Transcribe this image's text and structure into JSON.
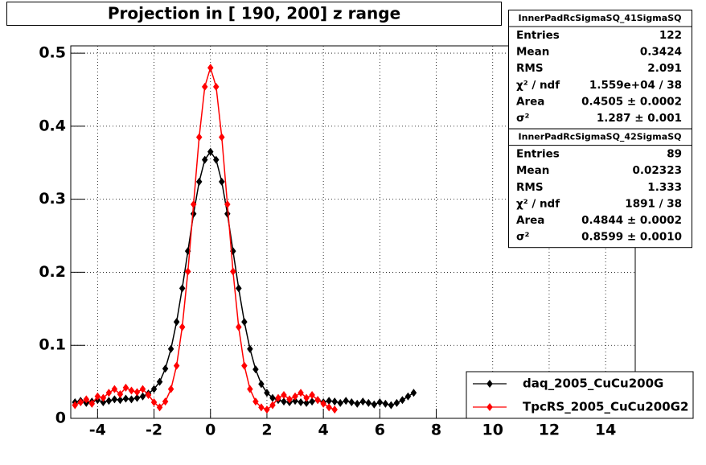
{
  "chart_data": {
    "type": "line",
    "title": "Projection in [ 190, 200] z range",
    "xlim": [
      -4.95,
      15.05
    ],
    "ylim": [
      0,
      0.51
    ],
    "xticks": [
      -4,
      -2,
      0,
      2,
      4,
      6,
      8,
      10,
      12,
      14
    ],
    "yticks": [
      0,
      0.1,
      0.2,
      0.3,
      0.4,
      0.5
    ],
    "grid": true,
    "legend_loc": "lower right",
    "series": [
      {
        "name": "daq_2005_CuCu200G",
        "color": "#000000",
        "x": [
          -4.8,
          -4.6,
          -4.4,
          -4.2,
          -4.0,
          -3.8,
          -3.6,
          -3.4,
          -3.2,
          -3.0,
          -2.8,
          -2.6,
          -2.4,
          -2.2,
          -2.0,
          -1.8,
          -1.6,
          -1.4,
          -1.2,
          -1.0,
          -0.8,
          -0.6,
          -0.4,
          -0.2,
          0,
          0.2,
          0.4,
          0.6,
          0.8,
          1.0,
          1.2,
          1.4,
          1.6,
          1.8,
          2.0,
          2.2,
          2.4,
          2.6,
          2.8,
          3.0,
          3.2,
          3.4,
          3.6,
          3.8,
          4.0,
          4.2,
          4.4,
          4.6,
          4.8,
          5.0,
          5.2,
          5.4,
          5.6,
          5.8,
          6.0,
          6.2,
          6.4,
          6.6,
          6.8,
          7.0,
          7.2
        ],
        "values": [
          0.022,
          0.024,
          0.021,
          0.023,
          0.025,
          0.022,
          0.024,
          0.026,
          0.025,
          0.027,
          0.026,
          0.028,
          0.03,
          0.034,
          0.04,
          0.05,
          0.068,
          0.095,
          0.132,
          0.178,
          0.229,
          0.28,
          0.324,
          0.354,
          0.365,
          0.354,
          0.324,
          0.28,
          0.229,
          0.178,
          0.132,
          0.095,
          0.067,
          0.047,
          0.035,
          0.028,
          0.025,
          0.023,
          0.022,
          0.024,
          0.022,
          0.021,
          0.023,
          0.025,
          0.022,
          0.024,
          0.023,
          0.021,
          0.024,
          0.022,
          0.02,
          0.023,
          0.021,
          0.019,
          0.022,
          0.02,
          0.018,
          0.021,
          0.025,
          0.03,
          0.035
        ]
      },
      {
        "name": "TpcRS_2005_CuCu200G2",
        "color": "#ff0000",
        "x": [
          -4.8,
          -4.6,
          -4.4,
          -4.2,
          -4.0,
          -3.8,
          -3.6,
          -3.4,
          -3.2,
          -3.0,
          -2.8,
          -2.6,
          -2.4,
          -2.2,
          -2.0,
          -1.8,
          -1.6,
          -1.4,
          -1.2,
          -1.0,
          -0.8,
          -0.6,
          -0.4,
          -0.2,
          0,
          0.2,
          0.4,
          0.6,
          0.8,
          1.0,
          1.2,
          1.4,
          1.6,
          1.8,
          2.0,
          2.2,
          2.4,
          2.6,
          2.8,
          3.0,
          3.2,
          3.4,
          3.6,
          3.8,
          4.0,
          4.2,
          4.4
        ],
        "values": [
          0.018,
          0.022,
          0.026,
          0.02,
          0.03,
          0.028,
          0.035,
          0.04,
          0.033,
          0.042,
          0.038,
          0.036,
          0.04,
          0.032,
          0.022,
          0.015,
          0.023,
          0.04,
          0.072,
          0.125,
          0.201,
          0.293,
          0.385,
          0.454,
          0.48,
          0.454,
          0.385,
          0.293,
          0.201,
          0.125,
          0.072,
          0.04,
          0.023,
          0.015,
          0.012,
          0.018,
          0.028,
          0.032,
          0.026,
          0.03,
          0.035,
          0.028,
          0.032,
          0.025,
          0.02,
          0.015,
          0.012
        ]
      }
    ],
    "stats_boxes": [
      {
        "title": "InnerPadRcSigmaSQ_41SigmaSQ",
        "rows": [
          [
            "Entries",
            "122"
          ],
          [
            "Mean",
            "0.3424"
          ],
          [
            "RMS",
            "2.091"
          ],
          [
            "χ² / ndf",
            "1.559e+04 / 38"
          ],
          [
            "Area",
            "0.4505 ± 0.0002"
          ],
          [
            "σ²",
            "1.287 ± 0.001"
          ]
        ]
      },
      {
        "title": "InnerPadRcSigmaSQ_42SigmaSQ",
        "rows": [
          [
            "Entries",
            "89"
          ],
          [
            "Mean",
            "0.02323"
          ],
          [
            "RMS",
            "1.333"
          ],
          [
            "χ² / ndf",
            "1891 / 38"
          ],
          [
            "Area",
            "0.4844 ± 0.0002"
          ],
          [
            "σ²",
            "0.8599 ± 0.0010"
          ]
        ]
      }
    ]
  }
}
